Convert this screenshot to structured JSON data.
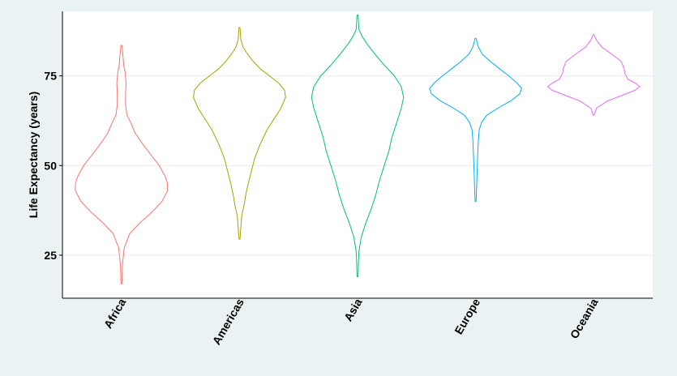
{
  "chart_data": {
    "type": "violin",
    "title": "",
    "xlabel": "",
    "ylabel": "Life Expectancy (years)",
    "ylim": [
      13,
      93
    ],
    "y_ticks": [
      25,
      50,
      75
    ],
    "grid": true,
    "legend": "none",
    "categories": [
      "Africa",
      "Americas",
      "Asia",
      "Europe",
      "Oceania"
    ],
    "colors": [
      "#F8766D",
      "#A3A500",
      "#00BF7D",
      "#00B0F6",
      "#E76BF3"
    ],
    "series": [
      {
        "category": "Africa",
        "color": "#F8766D",
        "density": [
          [
            17,
            0.01
          ],
          [
            22,
            0.02
          ],
          [
            27,
            0.06
          ],
          [
            31,
            0.18
          ],
          [
            34,
            0.4
          ],
          [
            37,
            0.66
          ],
          [
            40,
            0.88
          ],
          [
            43,
            1.0
          ],
          [
            45,
            1.0
          ],
          [
            47,
            0.95
          ],
          [
            50,
            0.82
          ],
          [
            53,
            0.64
          ],
          [
            56,
            0.46
          ],
          [
            59,
            0.3
          ],
          [
            62,
            0.2
          ],
          [
            64,
            0.12
          ],
          [
            67,
            0.09
          ],
          [
            70,
            0.09
          ],
          [
            73,
            0.1
          ],
          [
            76,
            0.08
          ],
          [
            78,
            0.05
          ],
          [
            81,
            0.03
          ],
          [
            83.5,
            0.01
          ]
        ]
      },
      {
        "category": "Americas",
        "color": "#A3A500",
        "density": [
          [
            29.5,
            0.01
          ],
          [
            33,
            0.03
          ],
          [
            36,
            0.05
          ],
          [
            39,
            0.1
          ],
          [
            42,
            0.14
          ],
          [
            45,
            0.19
          ],
          [
            48,
            0.25
          ],
          [
            52,
            0.33
          ],
          [
            56,
            0.45
          ],
          [
            60,
            0.6
          ],
          [
            63,
            0.75
          ],
          [
            66,
            0.9
          ],
          [
            69,
            1.0
          ],
          [
            71,
            0.98
          ],
          [
            73,
            0.85
          ],
          [
            75,
            0.65
          ],
          [
            77,
            0.45
          ],
          [
            79,
            0.3
          ],
          [
            81,
            0.18
          ],
          [
            83,
            0.08
          ],
          [
            85,
            0.03
          ],
          [
            88.5,
            0.01
          ]
        ]
      },
      {
        "category": "Asia",
        "color": "#00BF7D",
        "density": [
          [
            19,
            0.01
          ],
          [
            23,
            0.02
          ],
          [
            26,
            0.03
          ],
          [
            30,
            0.08
          ],
          [
            34,
            0.18
          ],
          [
            38,
            0.3
          ],
          [
            42,
            0.4
          ],
          [
            46,
            0.48
          ],
          [
            50,
            0.58
          ],
          [
            54,
            0.68
          ],
          [
            58,
            0.75
          ],
          [
            62,
            0.85
          ],
          [
            66,
            0.95
          ],
          [
            69,
            1.0
          ],
          [
            72,
            0.95
          ],
          [
            75,
            0.8
          ],
          [
            78,
            0.58
          ],
          [
            81,
            0.38
          ],
          [
            84,
            0.2
          ],
          [
            86,
            0.1
          ],
          [
            88,
            0.03
          ],
          [
            92,
            0.01
          ]
        ]
      },
      {
        "category": "Europe",
        "color": "#00B0F6",
        "density": [
          [
            40,
            0.01
          ],
          [
            43,
            0.02
          ],
          [
            47,
            0.03
          ],
          [
            51,
            0.04
          ],
          [
            54,
            0.05
          ],
          [
            57,
            0.06
          ],
          [
            60,
            0.08
          ],
          [
            62,
            0.13
          ],
          [
            64,
            0.24
          ],
          [
            66,
            0.48
          ],
          [
            68,
            0.76
          ],
          [
            70,
            0.96
          ],
          [
            71.5,
            1.0
          ],
          [
            73,
            0.9
          ],
          [
            75,
            0.72
          ],
          [
            77,
            0.52
          ],
          [
            79,
            0.32
          ],
          [
            81,
            0.15
          ],
          [
            83,
            0.06
          ],
          [
            85.5,
            0.01
          ]
        ]
      },
      {
        "category": "Oceania",
        "color": "#E76BF3",
        "density": [
          [
            64,
            0.01
          ],
          [
            66,
            0.06
          ],
          [
            68,
            0.3
          ],
          [
            69.5,
            0.6
          ],
          [
            71,
            0.9
          ],
          [
            72,
            1.0
          ],
          [
            73,
            0.9
          ],
          [
            74,
            0.75
          ],
          [
            75.5,
            0.68
          ],
          [
            77,
            0.66
          ],
          [
            79,
            0.6
          ],
          [
            81,
            0.4
          ],
          [
            83,
            0.18
          ],
          [
            85,
            0.06
          ],
          [
            86.5,
            0.01
          ]
        ]
      }
    ]
  }
}
